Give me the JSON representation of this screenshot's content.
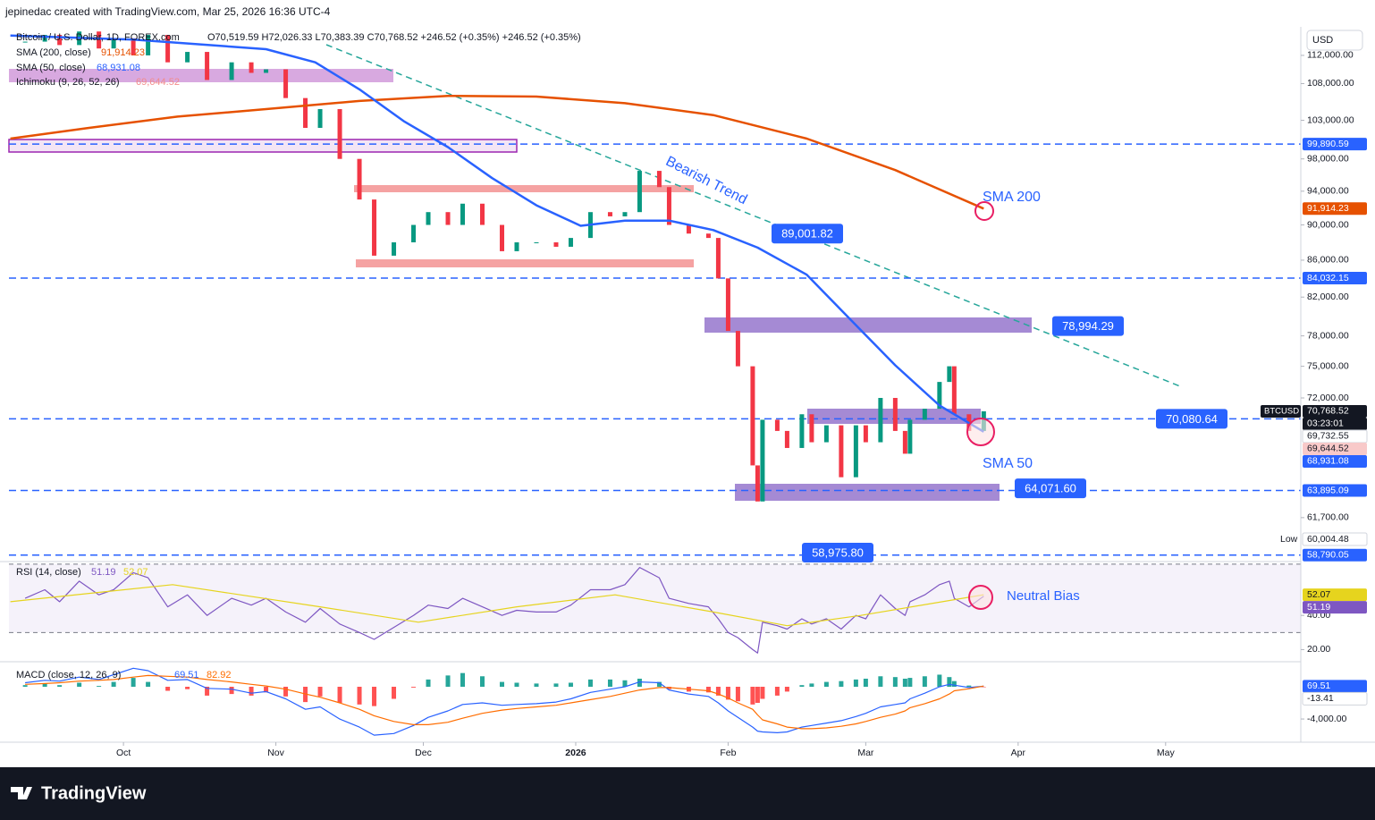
{
  "header": {
    "credit": "jepinedac created with TradingView.com, Mar 25, 2026 16:36 UTC-4"
  },
  "footer": {
    "brand": "TradingView"
  },
  "chart_data": [
    {
      "type": "candlestick",
      "title": "Bitcoin / U.S. Dollar, 1D, FOREX.com",
      "ohlc_text": "O70,519.59 H72,026.33 L70,383.39 C70,768.52 +246.52 (+0.35%) +246.52 (+0.35%)",
      "currency": "USD",
      "log_scale": true,
      "ylim": [
        58300,
        116200
      ],
      "yticks": [
        {
          "value": 112000,
          "label": "112,000.00"
        },
        {
          "value": 108000,
          "label": "108,000.00"
        },
        {
          "value": 103000,
          "label": "103,000.00"
        },
        {
          "value": 98000,
          "label": "98,000.00"
        },
        {
          "value": 94000,
          "label": "94,000.00"
        },
        {
          "value": 90000,
          "label": "90,000.00"
        },
        {
          "value": 86000,
          "label": "86,000.00"
        },
        {
          "value": 82000,
          "label": "82,000.00"
        },
        {
          "value": 78000,
          "label": "78,000.00"
        },
        {
          "value": 75000,
          "label": "75,000.00"
        },
        {
          "value": 72000,
          "label": "72,000.00"
        },
        {
          "value": 61700,
          "label": "61,700.00"
        }
      ],
      "xlim": [
        -23.3,
        239.5
      ],
      "xticks": [
        {
          "value": 0,
          "label": "Oct"
        },
        {
          "value": 31,
          "label": "Nov"
        },
        {
          "value": 61,
          "label": "Dec"
        },
        {
          "value": 92,
          "label": "2026"
        },
        {
          "value": 123,
          "label": "Feb"
        },
        {
          "value": 151,
          "label": "Mar"
        },
        {
          "value": 182,
          "label": "Apr"
        },
        {
          "value": 212,
          "label": "May"
        }
      ],
      "x": [
        -20,
        -16,
        -13,
        -9,
        -5,
        -2,
        2,
        5,
        9,
        13,
        17,
        22,
        26,
        29,
        33,
        37,
        40,
        44,
        48,
        51,
        55,
        59,
        62,
        66,
        69,
        73,
        77,
        80,
        84,
        88,
        91,
        95,
        99,
        102,
        105,
        109,
        111,
        115,
        119,
        121,
        123,
        125,
        128,
        129,
        130,
        133,
        135,
        138,
        140,
        143,
        146,
        149,
        151,
        154,
        157,
        159,
        160,
        163,
        166,
        168,
        169,
        172,
        175
      ],
      "close": [
        114000,
        115000,
        113500,
        115500,
        113000,
        114500,
        112000,
        115000,
        111000,
        112500,
        108500,
        111000,
        109500,
        110000,
        106000,
        102000,
        104500,
        98000,
        93000,
        86500,
        88000,
        90000,
        91500,
        90000,
        92500,
        90000,
        87000,
        88000,
        88000,
        87500,
        88500,
        91500,
        91000,
        91500,
        96500,
        94500,
        90000,
        89000,
        88500,
        84000,
        78500,
        75000,
        66000,
        63000,
        70000,
        69000,
        67500,
        70500,
        68000,
        69500,
        65000,
        69500,
        68000,
        72000,
        69000,
        67000,
        70000,
        71000,
        73500,
        75000,
        70500,
        69000,
        70768.52
      ],
      "close_label": "70,768.52",
      "symbol": "BTCUSD",
      "countdown": "03:23:01",
      "up_color": "#089981",
      "down_color": "#f23645",
      "series": [
        {
          "name": "SMA (200, close)",
          "value_label": "91,914.23",
          "color": "#e65100",
          "x": [
            -23,
            -7,
            11,
            29,
            48,
            66,
            84,
            102,
            120,
            139,
            157,
            175
          ],
          "values": [
            100600,
            102000,
            103500,
            104500,
            105600,
            106300,
            106200,
            105300,
            103700,
            100600,
            96600,
            91914.23
          ]
        },
        {
          "name": "SMA (50, close)",
          "value_label": "68,931.08",
          "color": "#2962ff",
          "x": [
            -23,
            2,
            29,
            39,
            48,
            57,
            66,
            75,
            84,
            93,
            102,
            111,
            120,
            129,
            139,
            148,
            157,
            166,
            175
          ],
          "values": [
            114900,
            114300,
            112900,
            111000,
            107200,
            102900,
            99500,
            95600,
            92300,
            89900,
            90500,
            90500,
            89400,
            87400,
            84400,
            79600,
            75100,
            71300,
            68931.08
          ]
        }
      ],
      "indicator": {
        "name": "Ichimoku (9, 26, 52, 26)",
        "value": 69644.52,
        "label": "69,644.52"
      },
      "levels": [
        {
          "value": 99890.59,
          "label": "99,890.59"
        },
        {
          "value": 84032.15,
          "label": "84,032.15"
        },
        {
          "value": 70080.64,
          "label": "70,080.64"
        },
        {
          "value": 63895.09,
          "label": "63,895.09"
        },
        {
          "value": 58790.05,
          "label": "58,790.05"
        }
      ],
      "annotations": [
        {
          "value": 89001.82,
          "label": "89,001.82"
        },
        {
          "value": 78994.29,
          "label": "78,994.29"
        },
        {
          "value": 64071.6,
          "label": "64,071.60"
        },
        {
          "value": 58975.8,
          "label": "58,975.80"
        }
      ],
      "other_tags": [
        {
          "value": 69732.55,
          "label": "69,732.55"
        },
        {
          "value": 60004.48,
          "label": "60,004.48"
        }
      ],
      "low_text": "Low",
      "texts": {
        "trend": "Bearish Trend",
        "sma200": "SMA 200",
        "sma50": "SMA 50"
      }
    },
    {
      "type": "line",
      "title": "RSI (14, close)",
      "ylim": [
        15,
        72
      ],
      "yticks": [
        {
          "value": 40,
          "label": "40.00"
        },
        {
          "value": 20,
          "label": "20.00"
        }
      ],
      "bands": [
        30,
        70
      ],
      "series": [
        {
          "value_label": "51.19",
          "color": "#7e57c2",
          "values": [
            50,
            55,
            48,
            60,
            52,
            55,
            65,
            62,
            45,
            52,
            40,
            50,
            46,
            50,
            42,
            36,
            44,
            35,
            30,
            26,
            33,
            40,
            46,
            44,
            50,
            45,
            40,
            43,
            42,
            42,
            46,
            55,
            55,
            58,
            68,
            62,
            50,
            47,
            45,
            38,
            30,
            27,
            20,
            18,
            36,
            34,
            32,
            38,
            35,
            38,
            32,
            40,
            38,
            52,
            44,
            40,
            48,
            52,
            58,
            60,
            50,
            45,
            51.19
          ]
        },
        {
          "value_label": "52.07",
          "color": "#e6d41e",
          "x": [
            -23,
            10,
            40,
            60,
            80,
            100,
            120,
            135,
            150,
            175
          ],
          "values": [
            48,
            58,
            45,
            36,
            45,
            52,
            42,
            34,
            40,
            52.07
          ]
        }
      ],
      "annotation": "Neutral Bias"
    },
    {
      "type": "macd",
      "title": "MACD (close, 12, 26, 9)",
      "ylim": [
        -7100,
        2550
      ],
      "yticks": [
        {
          "value": -4000,
          "label": "-4,000.00"
        }
      ],
      "macd": {
        "value_label": "69.51",
        "color": "#2962ff",
        "values": [
          500,
          800,
          700,
          1200,
          900,
          1500,
          2300,
          2000,
          800,
          900,
          -200,
          -300,
          -800,
          -600,
          -1500,
          -2800,
          -2500,
          -4000,
          -5000,
          -6000,
          -5800,
          -4800,
          -3800,
          -3000,
          -2200,
          -2000,
          -2300,
          -2200,
          -2100,
          -1900,
          -1500,
          -700,
          -300,
          0,
          600,
          500,
          -400,
          -900,
          -1200,
          -2000,
          -3000,
          -3800,
          -5000,
          -5500,
          -5600,
          -5700,
          -5600,
          -5000,
          -4800,
          -4500,
          -4200,
          -3700,
          -3300,
          -2500,
          -2200,
          -2000,
          -1500,
          -800,
          0,
          300,
          200,
          -100,
          69.51
        ]
      },
      "signal": {
        "value_label": "82.92",
        "color": "#ff6d00",
        "values": [
          300,
          400,
          500,
          700,
          800,
          900,
          1200,
          1400,
          1300,
          1200,
          900,
          600,
          300,
          100,
          -300,
          -900,
          -1300,
          -2000,
          -2800,
          -3600,
          -4300,
          -4700,
          -4700,
          -4400,
          -3900,
          -3300,
          -2900,
          -2700,
          -2500,
          -2300,
          -2000,
          -1600,
          -1200,
          -800,
          -400,
          -100,
          -100,
          -300,
          -500,
          -900,
          -1400,
          -2000,
          -2800,
          -3500,
          -4100,
          -4600,
          -5000,
          -5200,
          -5200,
          -5100,
          -4900,
          -4600,
          -4300,
          -3800,
          -3400,
          -3000,
          -2600,
          -2100,
          -1500,
          -900,
          -500,
          -250,
          82.92
        ]
      },
      "histogram": {
        "value_label": "-13.41",
        "colors": [
          "#26a69a",
          "#ff5252"
        ],
        "values": [
          200,
          400,
          200,
          500,
          100,
          600,
          1100,
          600,
          -500,
          -300,
          -1100,
          -900,
          -1100,
          -700,
          -1200,
          -1900,
          -1200,
          -2000,
          -2200,
          -2400,
          -1500,
          -100,
          900,
          1400,
          1700,
          1300,
          600,
          500,
          400,
          400,
          500,
          900,
          900,
          800,
          1000,
          600,
          -300,
          -600,
          -700,
          -1100,
          -1600,
          -1800,
          -2200,
          -2000,
          -1500,
          -1100,
          -600,
          200,
          400,
          600,
          700,
          900,
          1000,
          1300,
          1200,
          1000,
          1100,
          1300,
          1500,
          1200,
          700,
          150,
          -13.41
        ]
      }
    }
  ]
}
